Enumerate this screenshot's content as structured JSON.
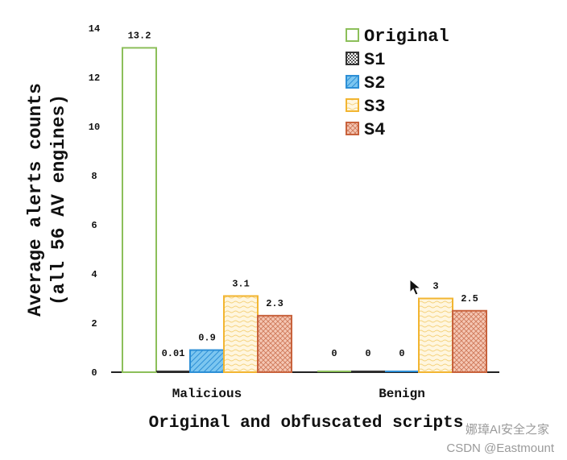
{
  "chart_data": {
    "type": "bar",
    "title": "",
    "xlabel": "Original and obfuscated scripts",
    "ylabel_line1": "Average alerts counts",
    "ylabel_line2": "(all 56 AV engines)",
    "ylim": [
      0,
      14
    ],
    "yticks": [
      "0",
      "2",
      "4",
      "6",
      "8",
      "10",
      "12",
      "14"
    ],
    "categories": [
      "Malicious",
      "Benign"
    ],
    "legend_position": "top-right",
    "grid": false,
    "series": [
      {
        "name": "Original",
        "values": [
          13.2,
          0
        ],
        "labels": [
          "13.2",
          "0"
        ],
        "color": "#8cbf5a",
        "fill": "#ffffff",
        "pattern": "none"
      },
      {
        "name": "S1",
        "values": [
          0.01,
          0
        ],
        "labels": [
          "0.01",
          "0"
        ],
        "color": "#333333",
        "fill": "#ffffff",
        "pattern": "check"
      },
      {
        "name": "S2",
        "values": [
          0.9,
          0
        ],
        "labels": [
          "0.9",
          "0"
        ],
        "color": "#2d8fd6",
        "fill": "#7cc6f0",
        "pattern": "diag"
      },
      {
        "name": "S3",
        "values": [
          3.1,
          3
        ],
        "labels": [
          "3.1",
          "3"
        ],
        "color": "#f2b531",
        "fill": "#fff6df",
        "pattern": "wave"
      },
      {
        "name": "S4",
        "values": [
          2.3,
          2.5
        ],
        "labels": [
          "2.3",
          "2.5"
        ],
        "color": "#c8623c",
        "fill": "#f5c7b4",
        "pattern": "hatch"
      }
    ]
  },
  "watermark": {
    "line1": "娜璋AI安全之家",
    "line2": "CSDN @Eastmount"
  }
}
